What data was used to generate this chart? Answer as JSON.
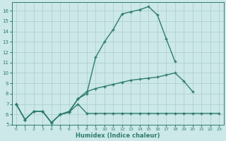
{
  "xlabel": "Humidex (Indice chaleur)",
  "bg_color": "#cce8e8",
  "line_color": "#2e7d6e",
  "grid_color": "#aacccc",
  "xlim": [
    -0.5,
    23.5
  ],
  "ylim": [
    5,
    16.8
  ],
  "yticks": [
    5,
    6,
    7,
    8,
    9,
    10,
    11,
    12,
    13,
    14,
    15,
    16
  ],
  "xticks": [
    0,
    1,
    2,
    3,
    4,
    5,
    6,
    7,
    8,
    9,
    10,
    11,
    12,
    13,
    14,
    15,
    16,
    17,
    18,
    19,
    20,
    21,
    22,
    23
  ],
  "line1_x": [
    0,
    1,
    2,
    3,
    4,
    5,
    6,
    7,
    8,
    9,
    10,
    11,
    12,
    13,
    14,
    15,
    16,
    17,
    18,
    19,
    20,
    21,
    22,
    23
  ],
  "line1_y": [
    7.0,
    5.5,
    6.3,
    6.3,
    5.2,
    6.0,
    6.2,
    7.5,
    8.0,
    11.5,
    13.0,
    14.2,
    15.7,
    15.9,
    16.1,
    16.4,
    15.6,
    13.3,
    11.1,
    null,
    null,
    null,
    null,
    null
  ],
  "line2_x": [
    0,
    1,
    2,
    3,
    4,
    5,
    6,
    7,
    8,
    9,
    10,
    11,
    12,
    13,
    14,
    15,
    16,
    17,
    18,
    19,
    20,
    21,
    22,
    23
  ],
  "line2_y": [
    7.0,
    5.5,
    6.3,
    6.3,
    5.2,
    6.0,
    6.3,
    7.5,
    8.2,
    8.5,
    8.7,
    8.9,
    9.1,
    9.3,
    9.4,
    9.5,
    9.6,
    9.8,
    10.0,
    9.2,
    8.2,
    null,
    null,
    null
  ],
  "line3_x": [
    0,
    1,
    2,
    3,
    4,
    5,
    6,
    7,
    8,
    9,
    10,
    11,
    12,
    13,
    14,
    15,
    16,
    17,
    18,
    19,
    20,
    21,
    22,
    23
  ],
  "line3_y": [
    7.0,
    5.5,
    6.3,
    6.3,
    5.2,
    6.0,
    6.2,
    7.0,
    6.1,
    6.1,
    6.1,
    6.1,
    6.1,
    6.1,
    6.1,
    6.1,
    6.1,
    6.1,
    6.1,
    6.1,
    6.1,
    6.1,
    6.1,
    6.1
  ]
}
